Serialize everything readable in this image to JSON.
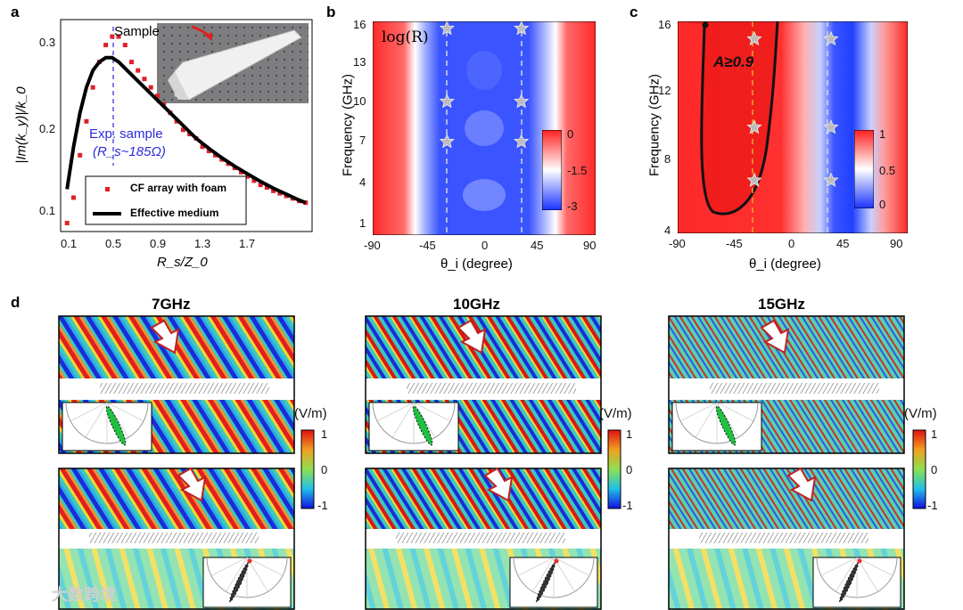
{
  "panels": {
    "a": {
      "letter": "a",
      "ylabel": "|Im(k_y)|/k_0",
      "xlabel": "R_s/Z_0",
      "inset_label": "Sample",
      "annotation_line1": "Exp. sample",
      "annotation_line2": "(R_s~185Ω)",
      "legend": [
        "CF array with foam",
        "Effective medium"
      ],
      "yticks": [
        "0.3",
        "0.2",
        "0.1"
      ],
      "xticks": [
        "0.1",
        "0.5",
        "0.9",
        "1.3",
        "1.7"
      ]
    },
    "b": {
      "letter": "b",
      "ylabel": "Frequency (GHz)",
      "xlabel": "θ_i (degree)",
      "map_label": "log(R)",
      "yticks": [
        "16",
        "13",
        "10",
        "7",
        "4",
        "1"
      ],
      "xticks": [
        "-90",
        "-45",
        "0",
        "45",
        "90"
      ],
      "colorbar": [
        "0",
        "-1.5",
        "-3"
      ]
    },
    "c": {
      "letter": "c",
      "ylabel": "Frequency (GHz)",
      "xlabel": "θ_i (degree)",
      "map_label": "A≥0.9",
      "yticks": [
        "16",
        "12",
        "8",
        "4"
      ],
      "xticks": [
        "-90",
        "-45",
        "0",
        "45",
        "90"
      ],
      "colorbar": [
        "1",
        "0.5",
        "0"
      ]
    },
    "d": {
      "letter": "d",
      "frequencies": [
        "7GHz",
        "10GHz",
        "15GHz"
      ],
      "colorbar_unit": "(V/m)",
      "colorbar": [
        "1",
        "0",
        "-1"
      ]
    }
  },
  "chart_data": [
    {
      "type": "scatter",
      "title": "",
      "xlabel": "R_s/Z_0",
      "ylabel": "|Im(k_y)|/k_0",
      "xlim": [
        0.05,
        2.0
      ],
      "ylim": [
        0.08,
        0.33
      ],
      "series": [
        {
          "name": "CF array with foam",
          "x": [
            0.1,
            0.15,
            0.2,
            0.25,
            0.3,
            0.35,
            0.4,
            0.45,
            0.5,
            0.55,
            0.6,
            0.65,
            0.7,
            0.75,
            0.8,
            0.85,
            0.9,
            0.95,
            1.0,
            1.05,
            1.1,
            1.15,
            1.2,
            1.25,
            1.3,
            1.35,
            1.4,
            1.45,
            1.5,
            1.55,
            1.6,
            1.65,
            1.7,
            1.75,
            1.8,
            1.85,
            1.9,
            1.95
          ],
          "y": [
            0.09,
            0.12,
            0.17,
            0.21,
            0.25,
            0.28,
            0.3,
            0.31,
            0.31,
            0.3,
            0.28,
            0.27,
            0.26,
            0.25,
            0.24,
            0.23,
            0.22,
            0.21,
            0.2,
            0.195,
            0.19,
            0.18,
            0.175,
            0.17,
            0.165,
            0.16,
            0.155,
            0.15,
            0.145,
            0.14,
            0.135,
            0.132,
            0.128,
            0.125,
            0.122,
            0.119,
            0.116,
            0.114
          ]
        },
        {
          "name": "Effective medium",
          "x": [
            0.1,
            0.15,
            0.2,
            0.25,
            0.3,
            0.35,
            0.4,
            0.45,
            0.5,
            0.6,
            0.7,
            0.8,
            0.9,
            1.0,
            1.1,
            1.2,
            1.3,
            1.4,
            1.5,
            1.6,
            1.7,
            1.8,
            1.9,
            1.95
          ],
          "y": [
            0.13,
            0.18,
            0.22,
            0.25,
            0.27,
            0.28,
            0.285,
            0.285,
            0.28,
            0.265,
            0.25,
            0.235,
            0.22,
            0.205,
            0.19,
            0.178,
            0.167,
            0.157,
            0.148,
            0.139,
            0.131,
            0.124,
            0.117,
            0.114
          ]
        }
      ]
    },
    {
      "type": "heatmap",
      "title": "log(R)",
      "xlabel": "θ_i (degree)",
      "ylabel": "Frequency (GHz)",
      "xlim": [
        -90,
        90
      ],
      "ylim": [
        0,
        16
      ],
      "color_range": [
        -3,
        0
      ],
      "markers": [
        {
          "x": -30,
          "y": 16
        },
        {
          "x": 30,
          "y": 16
        },
        {
          "x": -30,
          "y": 10
        },
        {
          "x": 30,
          "y": 10
        },
        {
          "x": -30,
          "y": 7
        },
        {
          "x": 30,
          "y": 7
        }
      ]
    },
    {
      "type": "heatmap",
      "title": "A≥0.9",
      "xlabel": "θ_i (degree)",
      "ylabel": "Frequency (GHz)",
      "xlim": [
        -90,
        90
      ],
      "ylim": [
        4,
        16
      ],
      "color_range": [
        0,
        1
      ],
      "markers": [
        {
          "x": -30,
          "y": 15
        },
        {
          "x": 30,
          "y": 15
        },
        {
          "x": -30,
          "y": 10
        },
        {
          "x": 30,
          "y": 10
        },
        {
          "x": -30,
          "y": 7
        },
        {
          "x": 30,
          "y": 7
        }
      ]
    }
  ],
  "colors": {
    "red": "#e0202a",
    "blue": "#1d3de0",
    "marker": "#e83030"
  },
  "watermark": "大数跨境"
}
